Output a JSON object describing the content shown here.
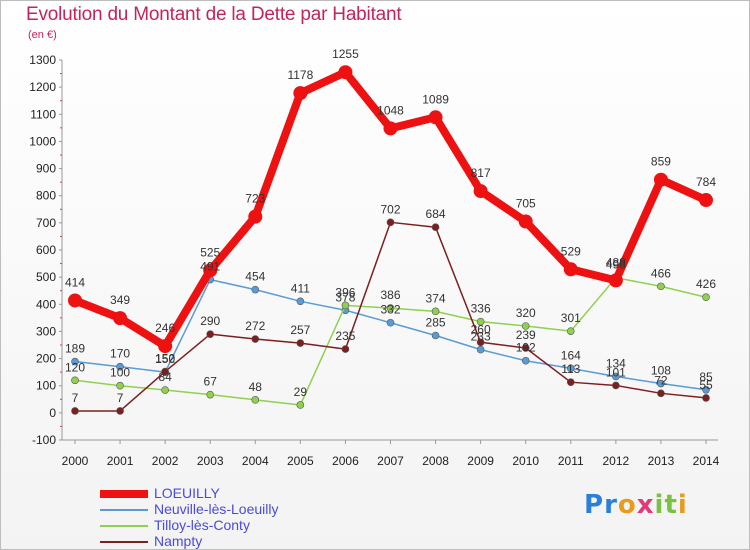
{
  "title": "Evolution du Montant de la Dette par Habitant",
  "unit": "(en €)",
  "logo": {
    "letters": [
      "P",
      "r",
      "o",
      "x",
      "i",
      "t",
      "i"
    ],
    "colors": [
      "#2a7fd8",
      "#2a7fd8",
      "#e89c1c",
      "#e03a7a",
      "#7ac142",
      "#7ac142",
      "#e89c1c"
    ]
  },
  "chart_data": {
    "type": "line",
    "x": [
      "2000",
      "2001",
      "2002",
      "2003",
      "2004",
      "2005",
      "2006",
      "2007",
      "2008",
      "2009",
      "2010",
      "2011",
      "2012",
      "2013",
      "2014"
    ],
    "ylim": [
      -100,
      1300
    ],
    "yticks": [
      -100,
      0,
      100,
      200,
      300,
      400,
      500,
      600,
      700,
      800,
      900,
      1000,
      1100,
      1200,
      1300
    ],
    "grid": false,
    "legend": "bottom-left",
    "series": [
      {
        "name": "LOEUILLY",
        "color": "#ee1111",
        "width": 8,
        "dot": 7,
        "values": [
          414,
          349,
          246,
          525,
          723,
          1178,
          1255,
          1048,
          1089,
          817,
          705,
          529,
          488,
          859,
          784
        ],
        "labels": [
          "414",
          "349",
          "246",
          "525",
          "723",
          "1178",
          "1255",
          "1048",
          "1089",
          "817",
          "705",
          "529",
          "488",
          "859",
          "784"
        ]
      },
      {
        "name": "Neuville-lès-Loeuilly",
        "color": "#5b9bd5",
        "width": 1.5,
        "dot": 3.5,
        "values": [
          189,
          170,
          150,
          491,
          454,
          411,
          378,
          332,
          285,
          233,
          192,
          164,
          134,
          108,
          85
        ],
        "labels": [
          "189",
          "170",
          "150",
          "491",
          "454",
          "411",
          "378",
          "332",
          "285",
          "233",
          "192",
          "164",
          "134",
          "108",
          "85"
        ]
      },
      {
        "name": "Tilloy-lès-Conty",
        "color": "#8fd14f",
        "width": 1.5,
        "dot": 3.5,
        "values": [
          120,
          100,
          84,
          67,
          48,
          29,
          396,
          386,
          374,
          336,
          320,
          301,
          498,
          466,
          426
        ],
        "labels": [
          "120",
          "100",
          "84",
          "67",
          "48",
          "29",
          "396",
          "386",
          "374",
          "336",
          "320",
          "301",
          "498",
          "466",
          "426"
        ]
      },
      {
        "name": "Nampty",
        "color": "#7b1f1f",
        "width": 1.5,
        "dot": 3.5,
        "values": [
          7,
          7,
          152,
          290,
          272,
          257,
          235,
          702,
          684,
          260,
          239,
          113,
          101,
          72,
          55
        ],
        "labels": [
          "7",
          "7",
          "152",
          "290",
          "272",
          "257",
          "235",
          "702",
          "684",
          "260",
          "239",
          "113",
          "101",
          "72",
          "55"
        ]
      }
    ]
  }
}
